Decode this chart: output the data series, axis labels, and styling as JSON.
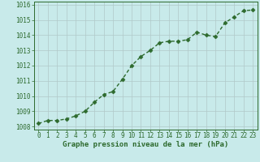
{
  "x": [
    0,
    1,
    2,
    3,
    4,
    5,
    6,
    7,
    8,
    9,
    10,
    11,
    12,
    13,
    14,
    15,
    16,
    17,
    18,
    19,
    20,
    21,
    22,
    23
  ],
  "y": [
    1008.2,
    1008.4,
    1008.4,
    1008.5,
    1008.7,
    1009.0,
    1009.6,
    1010.1,
    1010.3,
    1011.1,
    1012.0,
    1012.6,
    1013.0,
    1013.5,
    1013.6,
    1013.6,
    1013.7,
    1014.2,
    1014.0,
    1013.9,
    1014.8,
    1015.2,
    1015.6,
    1015.65
  ],
  "ylim": [
    1007.8,
    1016.2
  ],
  "yticks": [
    1008,
    1009,
    1010,
    1011,
    1012,
    1013,
    1014,
    1015,
    1016
  ],
  "xticks": [
    0,
    1,
    2,
    3,
    4,
    5,
    6,
    7,
    8,
    9,
    10,
    11,
    12,
    13,
    14,
    15,
    16,
    17,
    18,
    19,
    20,
    21,
    22,
    23
  ],
  "xlabel": "Graphe pression niveau de la mer (hPa)",
  "line_color": "#2d6a2d",
  "marker_color": "#2d6a2d",
  "bg_color": "#c8eaea",
  "grid_color": "#b0c8c8",
  "tick_label_color": "#2d6a2d",
  "xlabel_color": "#2d6a2d",
  "line_width": 1.0,
  "marker_size": 2.5,
  "tick_fontsize": 5.5,
  "xlabel_fontsize": 6.5
}
